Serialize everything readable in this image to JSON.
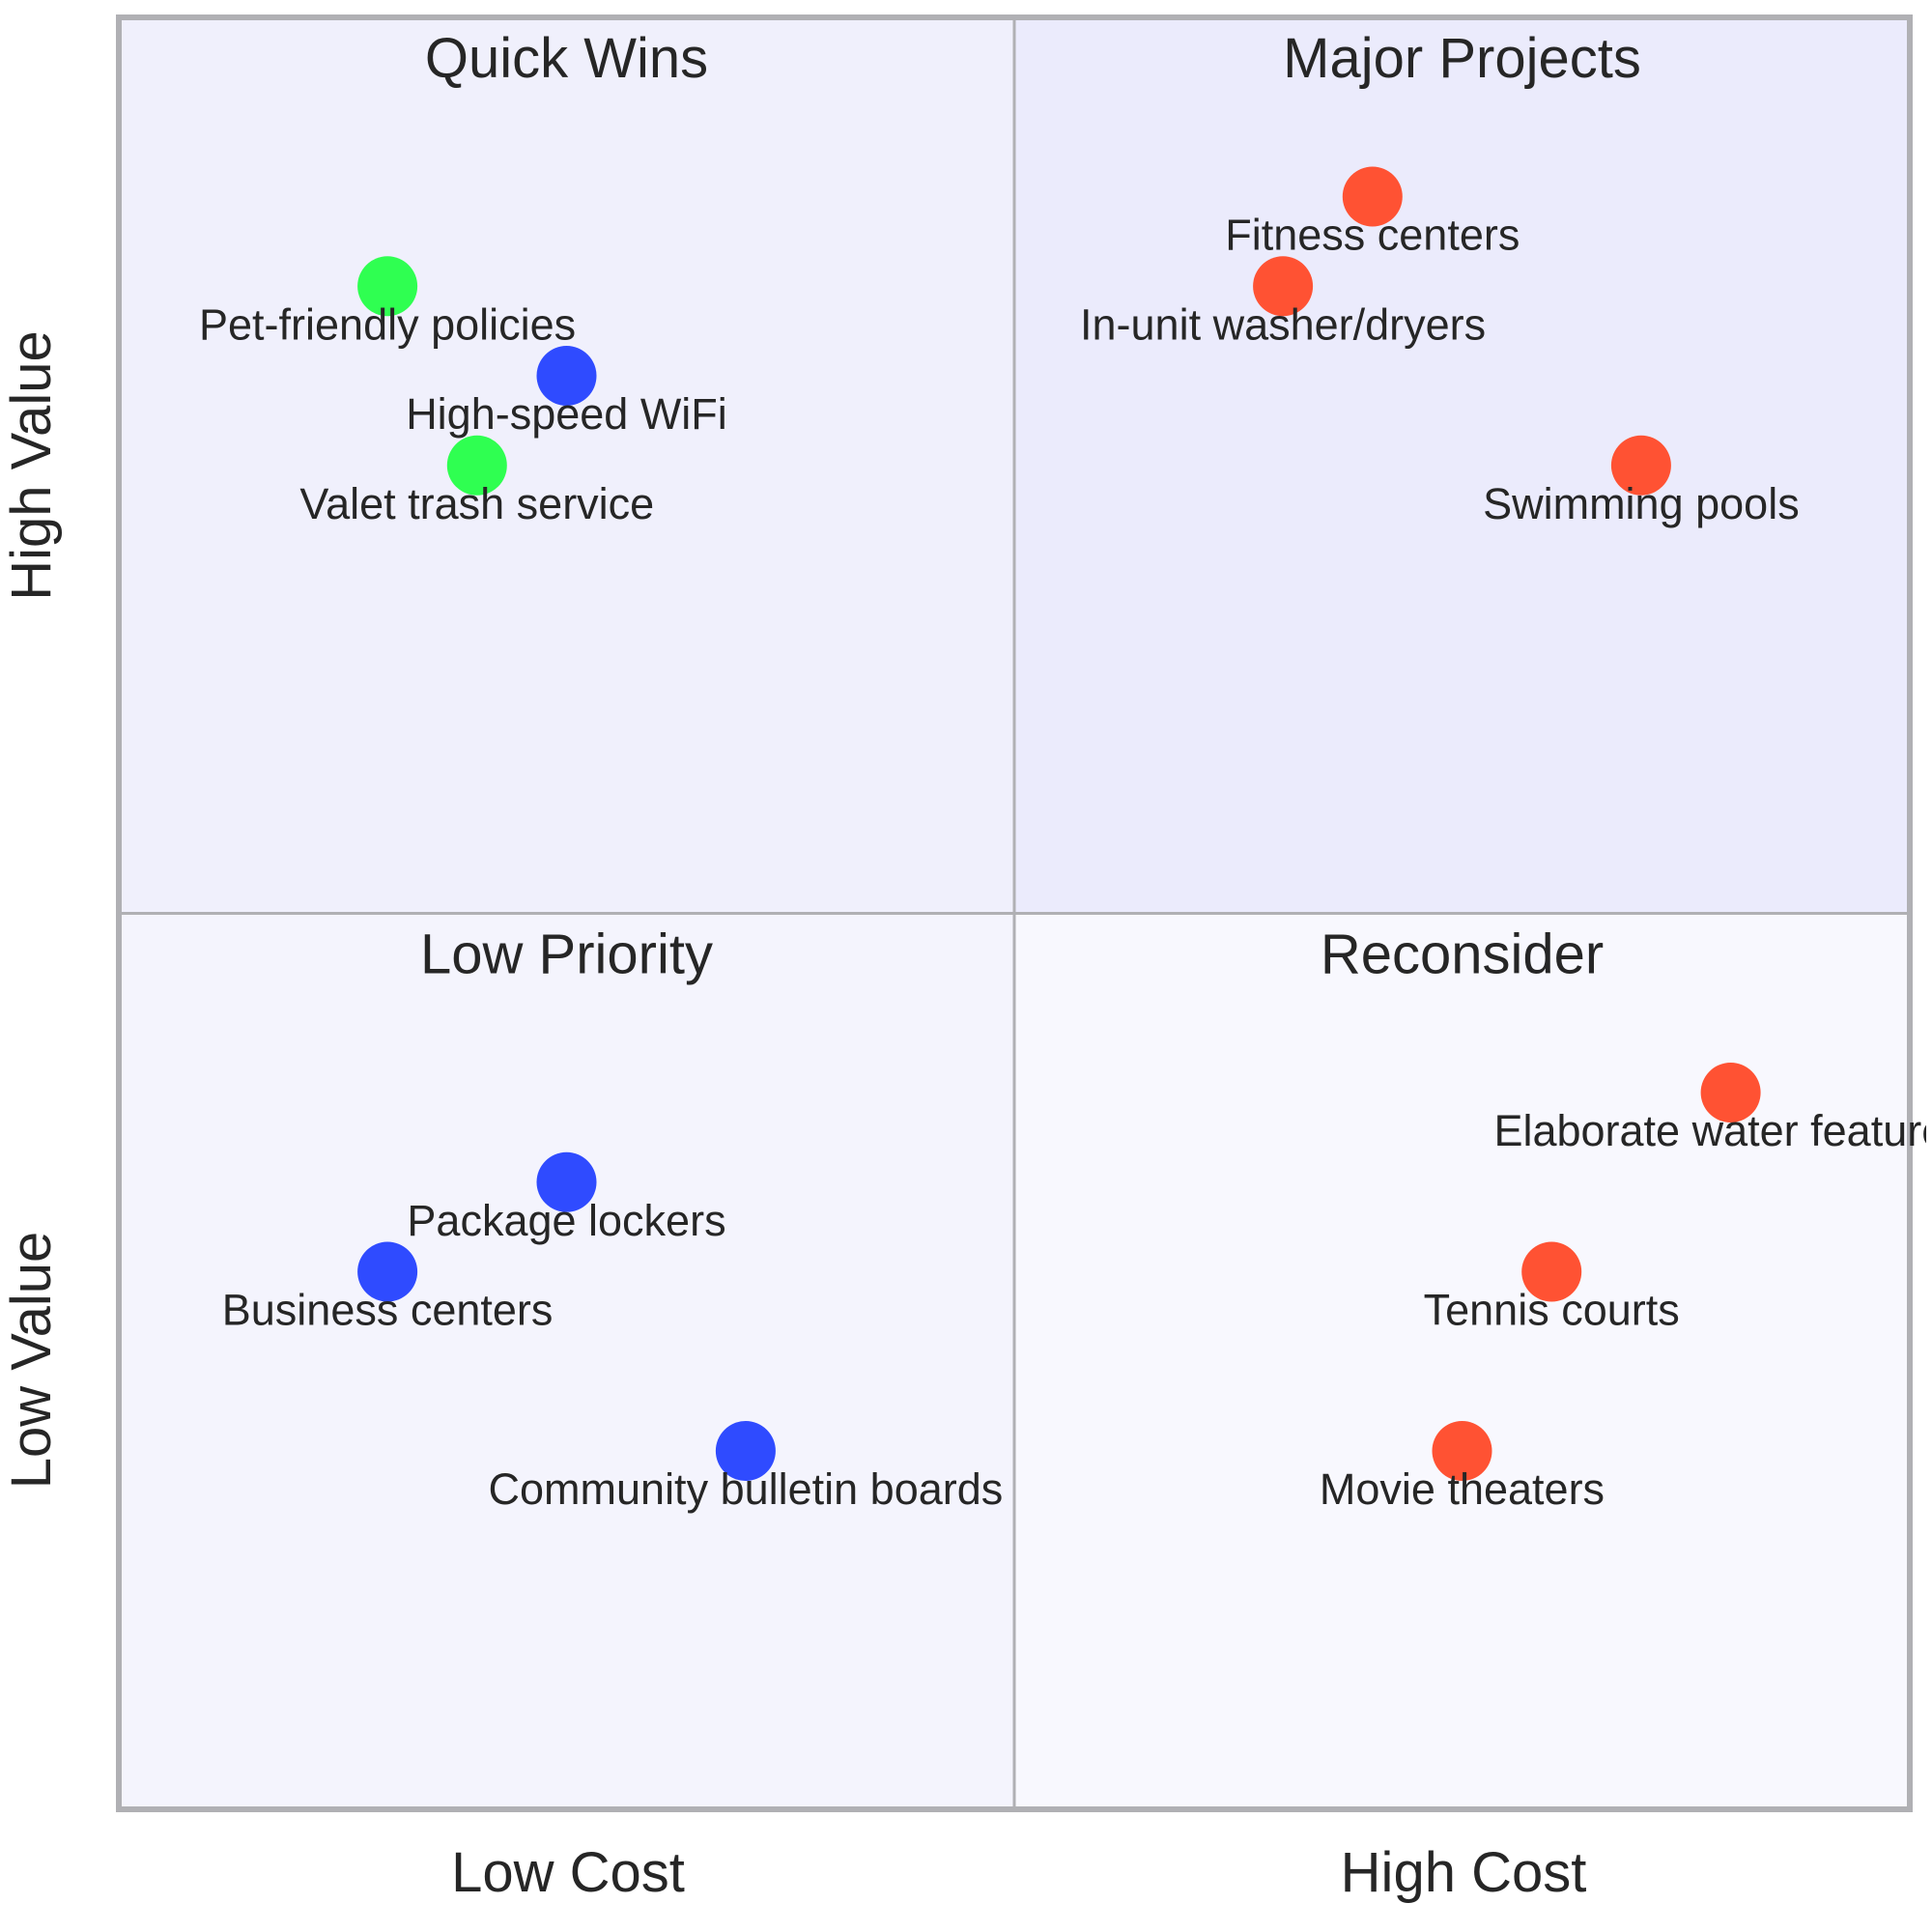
{
  "chart_data": {
    "type": "scatter",
    "title": "",
    "xlabel": "",
    "ylabel": "",
    "xlim": [
      0,
      10
    ],
    "ylim": [
      0,
      10
    ],
    "grid": false,
    "x_axis_labels": {
      "low": "Low Cost",
      "high": "High Cost"
    },
    "y_axis_labels": {
      "low": "Low Value",
      "high": "High Value"
    },
    "quadrants": [
      {
        "id": "top-left",
        "title": "Quick Wins",
        "fill": "#f0f0fc"
      },
      {
        "id": "top-right",
        "title": "Major Projects",
        "fill": "#ebebfc"
      },
      {
        "id": "bottom-left",
        "title": "Low Priority",
        "fill": "#f4f4fd"
      },
      {
        "id": "bottom-right",
        "title": "Reconsider",
        "fill": "#f8f8fe"
      }
    ],
    "points": [
      {
        "label": "Pet-friendly policies",
        "x": 1.5,
        "y": 8.5,
        "color": "#2fff51"
      },
      {
        "label": "High-speed WiFi",
        "x": 2.5,
        "y": 8.0,
        "color": "#2f4bff"
      },
      {
        "label": "Valet trash service",
        "x": 2.0,
        "y": 7.5,
        "color": "#2fff51"
      },
      {
        "label": "Fitness centers",
        "x": 7.0,
        "y": 9.0,
        "color": "#ff5233"
      },
      {
        "label": "In-unit washer/dryers",
        "x": 6.5,
        "y": 8.5,
        "color": "#ff5233"
      },
      {
        "label": "Swimming pools",
        "x": 8.5,
        "y": 7.5,
        "color": "#ff5233"
      },
      {
        "label": "Package lockers",
        "x": 2.5,
        "y": 3.5,
        "color": "#2f4bff"
      },
      {
        "label": "Business centers",
        "x": 1.5,
        "y": 3.0,
        "color": "#2f4bff"
      },
      {
        "label": "Community bulletin boards",
        "x": 3.5,
        "y": 2.0,
        "color": "#2f4bff"
      },
      {
        "label": "Elaborate water features",
        "x": 9.0,
        "y": 4.0,
        "color": "#ff5233"
      },
      {
        "label": "Tennis courts",
        "x": 8.0,
        "y": 3.0,
        "color": "#ff5233"
      },
      {
        "label": "Movie theaters",
        "x": 7.5,
        "y": 2.0,
        "color": "#ff5233"
      }
    ],
    "colors": {
      "frame": "#b0b0b4",
      "text": "#262626"
    }
  }
}
